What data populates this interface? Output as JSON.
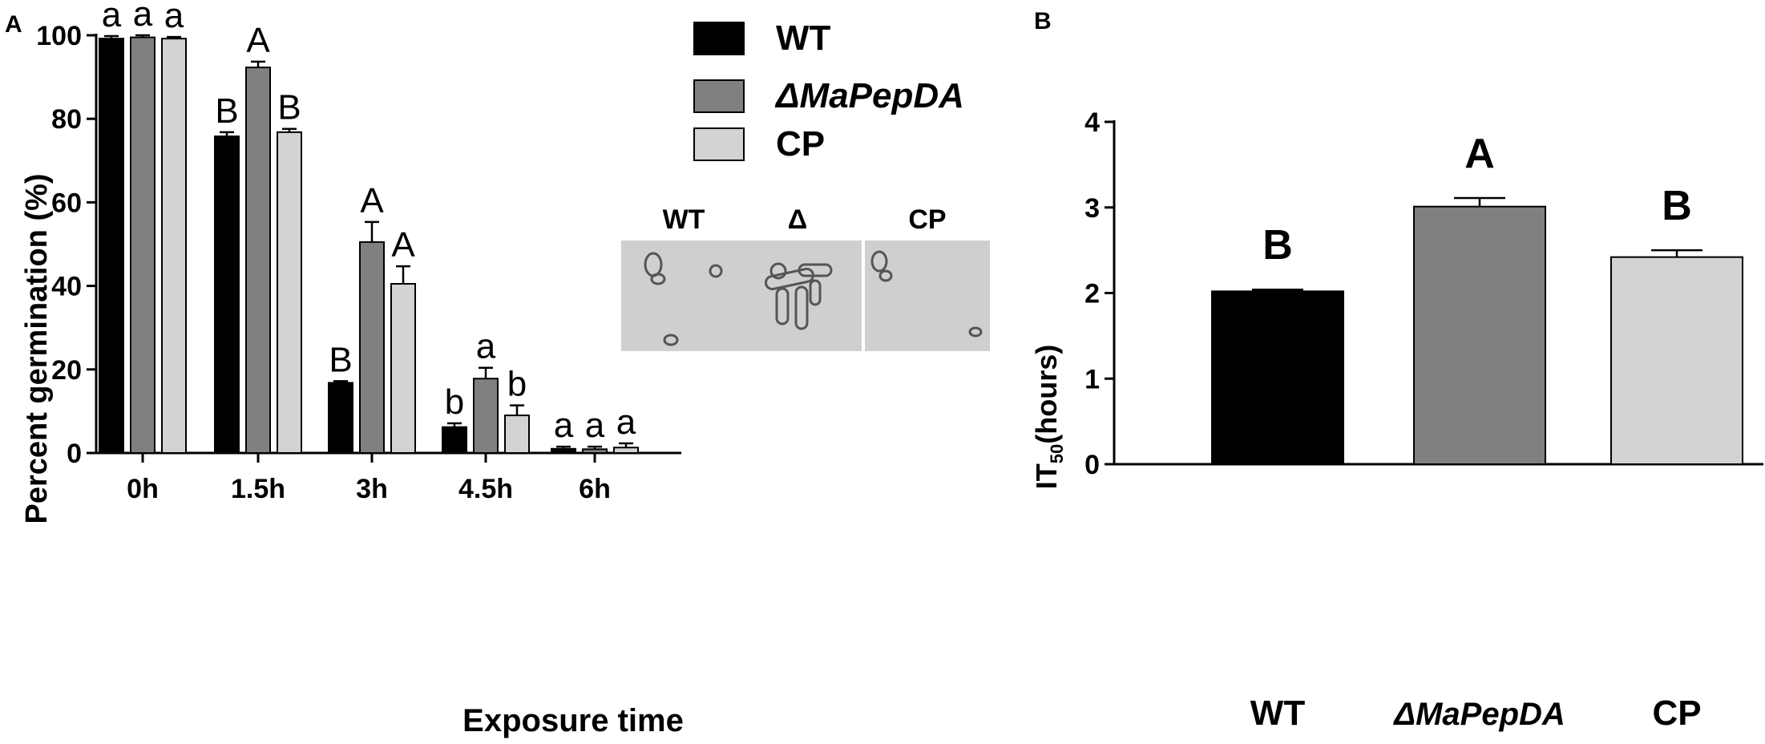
{
  "chart_data": [
    {
      "panel_label": "A",
      "type": "bar",
      "xlabel": "Exposure time",
      "ylabel": "Percent germination (%)",
      "ylim": [
        0,
        100
      ],
      "yticks": [
        "0",
        "20",
        "40",
        "60",
        "80",
        "100"
      ],
      "categories": [
        "0h",
        "1.5h",
        "3h",
        "4.5h",
        "6h"
      ],
      "legend_position": "top-right",
      "series": [
        {
          "name": "WT",
          "values": [
            99.2,
            75.8,
            16.8,
            6.2,
            1.0
          ],
          "errors": [
            0.6,
            1.0,
            0.4,
            0.9,
            0.5
          ],
          "letters": [
            "a",
            "B",
            "B",
            "b",
            "a"
          ]
        },
        {
          "name": "ΔMaPepDA",
          "values": [
            99.5,
            92.3,
            50.5,
            17.8,
            0.9
          ],
          "errors": [
            0.5,
            1.4,
            4.8,
            2.6,
            0.6
          ],
          "letters": [
            "a",
            "A",
            "A",
            "a",
            "a"
          ]
        },
        {
          "name": "CP",
          "values": [
            99.2,
            76.8,
            40.5,
            9.0,
            1.3
          ],
          "errors": [
            0.4,
            0.8,
            4.2,
            2.4,
            1.0
          ],
          "letters": [
            "a",
            "B",
            "A",
            "b",
            "a"
          ]
        }
      ],
      "inset_labels": [
        "WT",
        "Δ",
        "CP"
      ]
    },
    {
      "panel_label": "B",
      "type": "bar",
      "ylabel_main": "IT",
      "ylabel_sub": "50",
      "ylabel_rest": "(hours)",
      "ylim": [
        0,
        4
      ],
      "yticks": [
        "0",
        "1",
        "2",
        "3",
        "4"
      ],
      "categories": [
        "WT",
        "ΔMaPepDA",
        "CP"
      ],
      "values": [
        2.02,
        3.01,
        2.42
      ],
      "errors": [
        0.02,
        0.1,
        0.08
      ],
      "letters": [
        "B",
        "A",
        "B"
      ]
    }
  ],
  "colors": {
    "WT": "#000000",
    "ΔMaPepDA": "#808080",
    "CP": "#d3d3d3"
  }
}
